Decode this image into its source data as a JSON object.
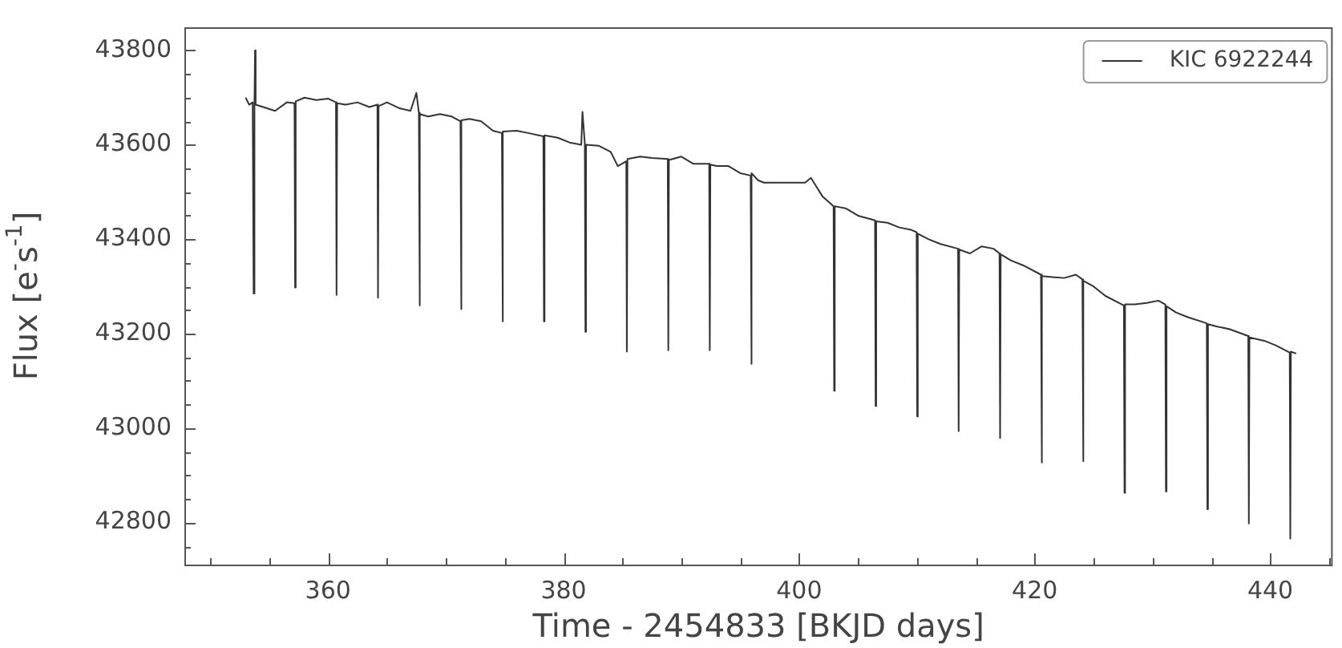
{
  "chart_data": {
    "type": "line",
    "xlabel": "Time - 2454833 [BKJD days]",
    "ylabel": "Flux [e$^{-}$s$^{-1}$]",
    "xlim": [
      347.8,
      445.3
    ],
    "ylim": [
      42711,
      43849
    ],
    "xticks": [
      {
        "value": 350,
        "label": null
      },
      {
        "value": 355,
        "label": null
      },
      360,
      {
        "value": 365,
        "label": null
      },
      {
        "value": 370,
        "label": null
      },
      {
        "value": 375,
        "label": null
      },
      380,
      {
        "value": 385,
        "label": null
      },
      {
        "value": 390,
        "label": null
      },
      {
        "value": 395,
        "label": null
      },
      400,
      {
        "value": 405,
        "label": null
      },
      {
        "value": 410,
        "label": null
      },
      {
        "value": 415,
        "label": null
      },
      420,
      {
        "value": 425,
        "label": null
      },
      {
        "value": 430,
        "label": null
      },
      {
        "value": 435,
        "label": null
      },
      440,
      {
        "value": 445,
        "label": null
      }
    ],
    "yticks": [
      {
        "value": 42750,
        "label": null
      },
      42800,
      {
        "value": 42850,
        "label": null
      },
      {
        "value": 42900,
        "label": null
      },
      {
        "value": 42950,
        "label": null
      },
      43000,
      {
        "value": 43050,
        "label": null
      },
      {
        "value": 43100,
        "label": null
      },
      {
        "value": 43150,
        "label": null
      },
      43200,
      {
        "value": 43250,
        "label": null
      },
      {
        "value": 43300,
        "label": null
      },
      {
        "value": 43350,
        "label": null
      },
      43400,
      {
        "value": 43450,
        "label": null
      },
      {
        "value": 43500,
        "label": null
      },
      {
        "value": 43550,
        "label": null
      },
      43600,
      {
        "value": 43650,
        "label": null
      },
      {
        "value": 43700,
        "label": null
      },
      {
        "value": 43750,
        "label": null
      },
      43800
    ],
    "grid": false,
    "legend": "top right",
    "marker": "none",
    "line_style": "solid",
    "series": [
      {
        "name": "KIC 6922244",
        "color": "#333333",
        "x": [
          353.0,
          353.3,
          353.6,
          353.68,
          353.75,
          353.8,
          353.85,
          354.5,
          355.5,
          356.5,
          357.15,
          357.2,
          357.25,
          358.0,
          359.0,
          360.0,
          360.67,
          360.72,
          360.77,
          361.5,
          362.5,
          363.5,
          364.19,
          364.24,
          364.29,
          365.0,
          366.0,
          367.0,
          367.5,
          367.71,
          367.76,
          367.81,
          368.5,
          369.5,
          370.5,
          371.24,
          371.29,
          371.34,
          372.0,
          373.0,
          374.0,
          374.76,
          374.81,
          374.86,
          376.0,
          377.0,
          378.28,
          378.33,
          378.38,
          379.5,
          380.5,
          381.5,
          381.6,
          381.8,
          381.85,
          381.9,
          383.0,
          384.0,
          384.6,
          385.32,
          385.37,
          385.42,
          386.5,
          387.5,
          388.84,
          388.89,
          388.94,
          390.0,
          391.0,
          392.36,
          392.41,
          392.46,
          393.0,
          394.0,
          395.0,
          395.88,
          395.93,
          395.98,
          396.5,
          397.0,
          400.5,
          401.0,
          402.0,
          402.92,
          402.97,
          403.02,
          404.0,
          405.0,
          406.44,
          406.49,
          406.54,
          407.5,
          408.5,
          409.5,
          409.97,
          410.02,
          410.07,
          411.0,
          412.0,
          413.49,
          413.54,
          413.59,
          414.5,
          415.5,
          416.5,
          417.01,
          417.06,
          417.11,
          418.0,
          419.0,
          420.53,
          420.58,
          420.63,
          421.5,
          422.5,
          423.5,
          424.05,
          424.1,
          424.15,
          425.0,
          426.0,
          427.57,
          427.62,
          427.67,
          428.5,
          429.5,
          430.5,
          431.09,
          431.14,
          431.19,
          432.0,
          433.0,
          434.61,
          434.66,
          434.71,
          435.5,
          436.5,
          438.13,
          438.18,
          438.23,
          439.5,
          440.5,
          441.65,
          441.7,
          441.75,
          442.2
        ],
        "values": [
          43700,
          43685,
          43690,
          43285,
          43690,
          43800,
          43685,
          43680,
          43672,
          43690,
          43688,
          43298,
          43692,
          43700,
          43695,
          43698,
          43690,
          43282,
          43688,
          43685,
          43690,
          43680,
          43685,
          43276,
          43682,
          43690,
          43678,
          43672,
          43710,
          43668,
          43260,
          43665,
          43660,
          43665,
          43660,
          43650,
          43252,
          43652,
          43655,
          43650,
          43630,
          43625,
          43226,
          43628,
          43630,
          43625,
          43618,
          43226,
          43620,
          43615,
          43605,
          43600,
          43670,
          43602,
          43204,
          43600,
          43598,
          43585,
          43555,
          43565,
          43162,
          43570,
          43575,
          43572,
          43570,
          43165,
          43568,
          43575,
          43560,
          43560,
          43165,
          43558,
          43555,
          43555,
          43540,
          43535,
          43136,
          43540,
          43525,
          43520,
          43520,
          43530,
          43490,
          43470,
          43079,
          43470,
          43465,
          43450,
          43440,
          43047,
          43438,
          43435,
          43425,
          43420,
          43415,
          43025,
          43412,
          43400,
          43390,
          43380,
          42994,
          43378,
          43370,
          43385,
          43380,
          43370,
          42979,
          43368,
          43355,
          43345,
          43325,
          42927,
          43322,
          43320,
          43318,
          43325,
          43315,
          42930,
          43312,
          43300,
          43280,
          43260,
          42863,
          43262,
          43262,
          43265,
          43270,
          43262,
          42866,
          43258,
          43245,
          43235,
          43222,
          42828,
          43220,
          43215,
          43210,
          43195,
          42798,
          43192,
          43185,
          43175,
          43160,
          42766,
          43162,
          43158
        ]
      }
    ]
  }
}
